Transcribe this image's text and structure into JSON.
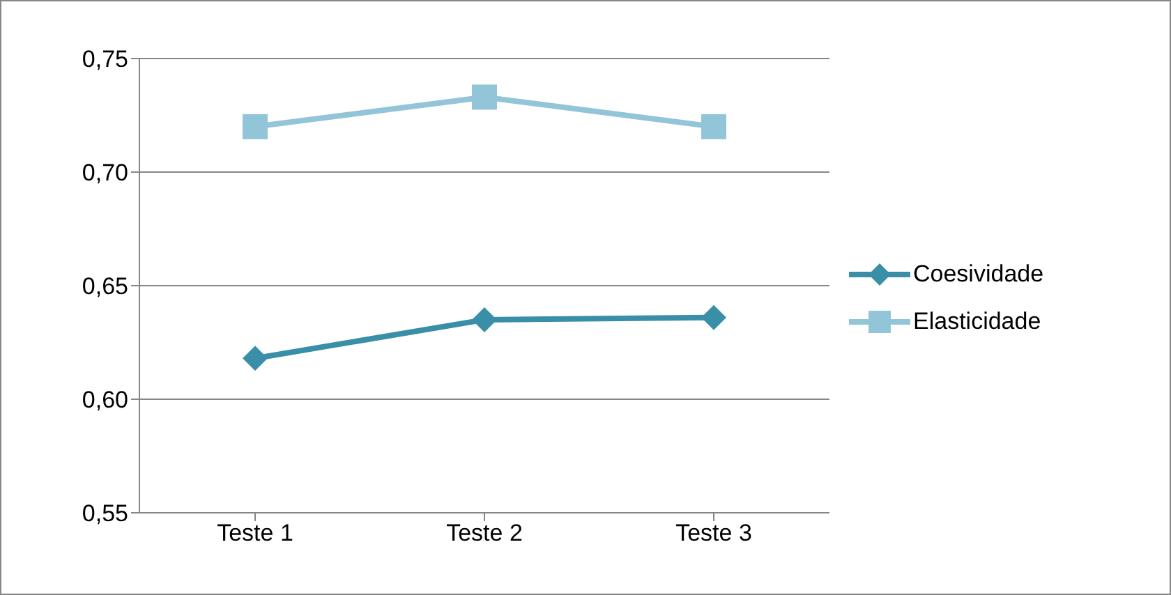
{
  "chart_data": {
    "type": "line",
    "categories": [
      "Teste 1",
      "Teste 2",
      "Teste 3"
    ],
    "series": [
      {
        "name": "Coesividade",
        "color": "#3a8fa8",
        "marker": "diamond",
        "values": [
          0.618,
          0.635,
          0.636
        ]
      },
      {
        "name": "Elasticidade",
        "color": "#93c5d8",
        "marker": "square",
        "values": [
          0.72,
          0.733,
          0.72
        ]
      }
    ],
    "ylim": [
      0.55,
      0.75
    ],
    "yticks": [
      {
        "value": 0.55,
        "label": "0,55"
      },
      {
        "value": 0.6,
        "label": "0,60"
      },
      {
        "value": 0.65,
        "label": "0,65"
      },
      {
        "value": 0.7,
        "label": "0,70"
      },
      {
        "value": 0.75,
        "label": "0,75"
      }
    ],
    "grid": "y",
    "legend": "right"
  }
}
